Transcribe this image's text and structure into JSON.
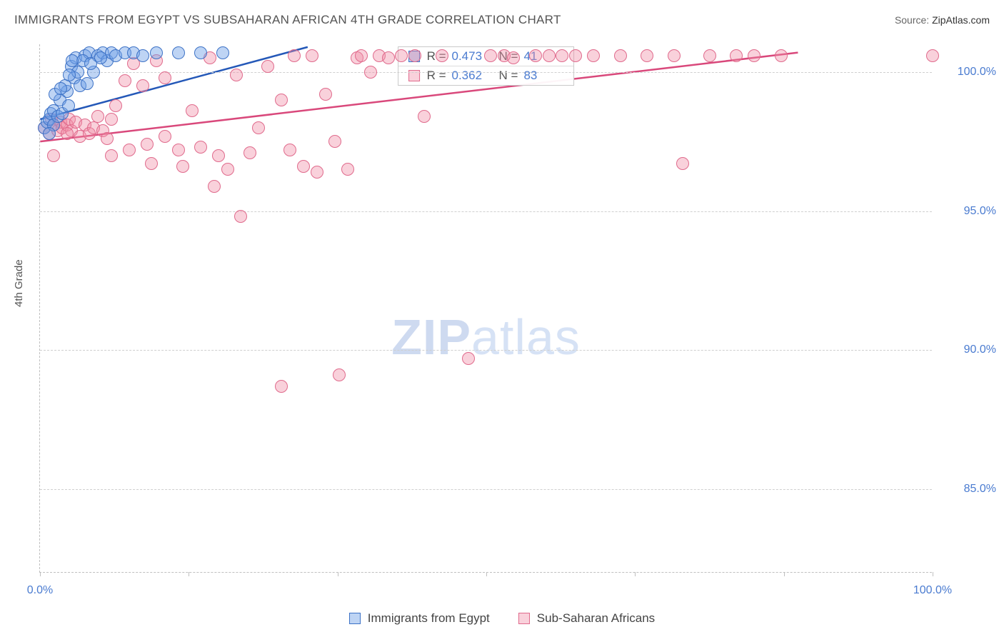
{
  "header": {
    "title": "IMMIGRANTS FROM EGYPT VS SUBSAHARAN AFRICAN 4TH GRADE CORRELATION CHART",
    "source_label": "Source:",
    "source_value": "ZipAtlas.com"
  },
  "axes": {
    "y_label": "4th Grade",
    "x_min": 0,
    "x_max": 100,
    "y_min": 82,
    "y_max": 101,
    "y_ticks": [
      {
        "v": 85,
        "label": "85.0%"
      },
      {
        "v": 90,
        "label": "90.0%"
      },
      {
        "v": 95,
        "label": "95.0%"
      },
      {
        "v": 100,
        "label": "100.0%"
      }
    ],
    "x_ticks_minor": [
      0,
      16.67,
      33.33,
      50,
      66.67,
      83.33,
      100
    ],
    "x_tick_first": "0.0%",
    "x_tick_last": "100.0%"
  },
  "colors": {
    "blue_fill": "rgba(110,160,230,0.45)",
    "blue_stroke": "#3d72c6",
    "pink_fill": "rgba(240,140,165,0.40)",
    "pink_stroke": "#e06a8c",
    "grid": "#cfcfcf",
    "text_axis": "#4a7bd0",
    "line_blue": "#2458b8",
    "line_pink": "#d9487b"
  },
  "marker_radius": 9,
  "legend_box": {
    "rows": [
      {
        "swatch": "blue",
        "R": "0.473",
        "N": "41"
      },
      {
        "swatch": "pink",
        "R": "0.362",
        "N": "83"
      }
    ]
  },
  "bottom_legend": [
    {
      "swatch": "blue",
      "label": "Immigrants from Egypt"
    },
    {
      "swatch": "pink",
      "label": "Sub-Saharan Africans"
    }
  ],
  "watermark": {
    "zip": "ZIP",
    "atlas": "atlas"
  },
  "trend_lines": {
    "blue": {
      "x1": 0,
      "y1": 98.3,
      "x2": 30,
      "y2": 100.9
    },
    "pink": {
      "x1": 0,
      "y1": 97.5,
      "x2": 85,
      "y2": 100.7
    }
  },
  "series": {
    "blue": [
      [
        0.5,
        98.0
      ],
      [
        0.8,
        98.2
      ],
      [
        1.0,
        98.3
      ],
      [
        1.2,
        98.5
      ],
      [
        1.5,
        98.1
      ],
      [
        1.0,
        97.8
      ],
      [
        1.5,
        98.6
      ],
      [
        2.0,
        98.4
      ],
      [
        2.2,
        99.0
      ],
      [
        2.5,
        98.5
      ],
      [
        3.0,
        99.3
      ],
      [
        3.2,
        98.8
      ],
      [
        3.5,
        100.2
      ],
      [
        3.8,
        99.8
      ],
      [
        4.0,
        100.5
      ],
      [
        4.5,
        99.5
      ],
      [
        5.0,
        100.6
      ],
      [
        5.3,
        99.6
      ],
      [
        5.5,
        100.7
      ],
      [
        6.0,
        100.0
      ],
      [
        6.5,
        100.6
      ],
      [
        7.0,
        100.7
      ],
      [
        7.5,
        100.4
      ],
      [
        8.0,
        100.7
      ],
      [
        8.5,
        100.6
      ],
      [
        9.5,
        100.7
      ],
      [
        10.5,
        100.7
      ],
      [
        11.5,
        100.6
      ],
      [
        13.0,
        100.7
      ],
      [
        15.5,
        100.7
      ],
      [
        18.0,
        100.7
      ],
      [
        20.5,
        100.7
      ],
      [
        2.8,
        99.5
      ],
      [
        4.2,
        100.0
      ],
      [
        1.7,
        99.2
      ],
      [
        2.3,
        99.4
      ],
      [
        3.3,
        99.9
      ],
      [
        4.8,
        100.4
      ],
      [
        5.7,
        100.3
      ],
      [
        6.8,
        100.5
      ],
      [
        3.6,
        100.4
      ]
    ],
    "pink": [
      [
        0.5,
        98.0
      ],
      [
        1.0,
        97.8
      ],
      [
        1.3,
        98.3
      ],
      [
        1.5,
        98.1
      ],
      [
        2.0,
        97.9
      ],
      [
        2.3,
        98.2
      ],
      [
        2.5,
        98.0
      ],
      [
        3.0,
        98.1
      ],
      [
        3.3,
        98.3
      ],
      [
        3.5,
        97.9
      ],
      [
        4.0,
        98.2
      ],
      [
        4.5,
        97.7
      ],
      [
        5.0,
        98.1
      ],
      [
        5.5,
        97.8
      ],
      [
        6.0,
        98.0
      ],
      [
        6.5,
        98.4
      ],
      [
        7.0,
        97.9
      ],
      [
        7.5,
        97.6
      ],
      [
        8.0,
        98.3
      ],
      [
        8.5,
        98.8
      ],
      [
        1.5,
        97.0
      ],
      [
        3.0,
        97.8
      ],
      [
        8.0,
        97.0
      ],
      [
        10.0,
        97.2
      ],
      [
        12.0,
        97.4
      ],
      [
        12.5,
        96.7
      ],
      [
        14.0,
        97.7
      ],
      [
        14.0,
        99.8
      ],
      [
        15.5,
        97.2
      ],
      [
        16.0,
        96.6
      ],
      [
        17.0,
        98.6
      ],
      [
        18.0,
        97.3
      ],
      [
        19.5,
        95.9
      ],
      [
        20.0,
        97.0
      ],
      [
        21.0,
        96.5
      ],
      [
        22.0,
        99.9
      ],
      [
        22.5,
        94.8
      ],
      [
        23.5,
        97.1
      ],
      [
        24.5,
        98.0
      ],
      [
        25.5,
        100.2
      ],
      [
        27.0,
        99.0
      ],
      [
        27.0,
        88.7
      ],
      [
        28.0,
        97.2
      ],
      [
        28.5,
        100.6
      ],
      [
        29.5,
        96.6
      ],
      [
        30.5,
        100.6
      ],
      [
        31.0,
        96.4
      ],
      [
        32.0,
        99.2
      ],
      [
        33.0,
        97.5
      ],
      [
        33.5,
        89.1
      ],
      [
        34.5,
        96.5
      ],
      [
        35.5,
        100.5
      ],
      [
        36.0,
        100.6
      ],
      [
        37.0,
        100.0
      ],
      [
        38.0,
        100.6
      ],
      [
        39.0,
        100.5
      ],
      [
        40.5,
        100.6
      ],
      [
        42.0,
        100.6
      ],
      [
        43.0,
        98.4
      ],
      [
        45.0,
        100.6
      ],
      [
        48.0,
        89.7
      ],
      [
        50.5,
        100.6
      ],
      [
        52.0,
        100.6
      ],
      [
        53.0,
        100.5
      ],
      [
        55.5,
        100.6
      ],
      [
        57.0,
        100.6
      ],
      [
        58.5,
        100.6
      ],
      [
        60.0,
        100.6
      ],
      [
        62.0,
        100.6
      ],
      [
        65.0,
        100.6
      ],
      [
        68.0,
        100.6
      ],
      [
        71.0,
        100.6
      ],
      [
        72.0,
        96.7
      ],
      [
        75.0,
        100.6
      ],
      [
        78.0,
        100.6
      ],
      [
        80.0,
        100.6
      ],
      [
        83.0,
        100.6
      ],
      [
        100.0,
        100.6
      ],
      [
        9.5,
        99.7
      ],
      [
        10.5,
        100.3
      ],
      [
        11.5,
        99.5
      ],
      [
        13.0,
        100.4
      ],
      [
        19.0,
        100.5
      ]
    ]
  }
}
